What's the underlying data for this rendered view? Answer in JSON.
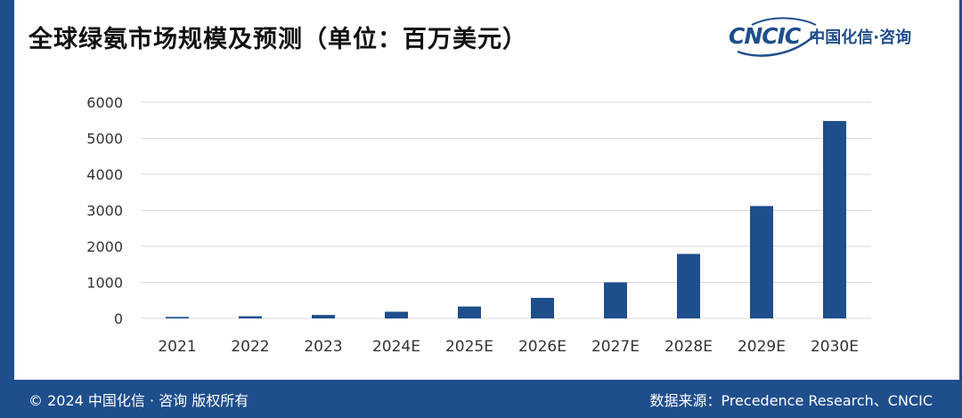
{
  "header": {
    "title": "全球绿氨市场规模及预测（单位：百万美元）",
    "logo_mark": "CNCIC",
    "logo_text": "中国化信·咨询"
  },
  "footer": {
    "copyright": "© 2024 中国化信 · 咨询 版权所有",
    "source": "数据来源：Precedence Research、CNCIC"
  },
  "colors": {
    "brand": "#1f4e8c",
    "bar": "#1f4e8c",
    "grid": "#d9d9d9",
    "axis_text": "#333333"
  },
  "chart_data": {
    "type": "bar",
    "title": "",
    "xlabel": "",
    "ylabel": "",
    "categories": [
      "2021",
      "2022",
      "2023",
      "2024E",
      "2025E",
      "2026E",
      "2027E",
      "2028E",
      "2029E",
      "2030E"
    ],
    "values": [
      40,
      60,
      95,
      185,
      330,
      570,
      1000,
      1790,
      3120,
      5480
    ],
    "ylim": [
      0,
      6000
    ],
    "yticks": [
      0,
      1000,
      2000,
      3000,
      4000,
      5000,
      6000
    ],
    "grid": true,
    "legend": "none"
  }
}
